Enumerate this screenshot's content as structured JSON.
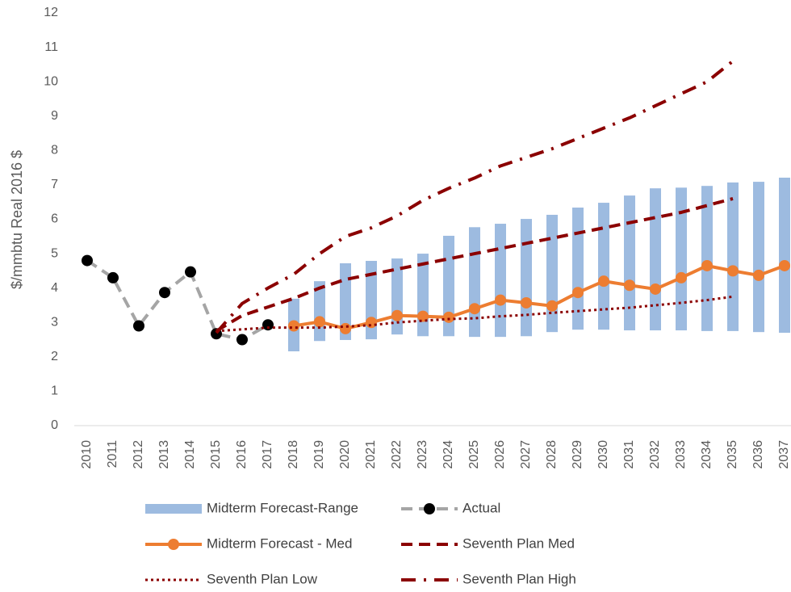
{
  "chart_data": {
    "type": "line",
    "y_label": "$/mmbtu Real 2016 $",
    "categories": [
      "2010",
      "2011",
      "2012",
      "2013",
      "2014",
      "2015",
      "2016",
      "2017",
      "2018",
      "2019",
      "2020",
      "2021",
      "2022",
      "2023",
      "2024",
      "2025",
      "2026",
      "2027",
      "2028",
      "2029",
      "2030",
      "2031",
      "2032",
      "2033",
      "2034",
      "2035",
      "2036",
      "2037"
    ],
    "ylim": [
      0,
      12
    ],
    "yticks": [
      0,
      1,
      2,
      3,
      4,
      5,
      6,
      7,
      8,
      9,
      10,
      11,
      12
    ],
    "grid": false,
    "legend": "bottom",
    "series": [
      {
        "name": "Midterm Forecast-Range",
        "kind": "range",
        "color": "#9dbbe0",
        "low": [
          null,
          null,
          null,
          null,
          null,
          null,
          null,
          null,
          2.16,
          2.46,
          2.49,
          2.51,
          2.65,
          2.6,
          2.6,
          2.58,
          2.58,
          2.6,
          2.72,
          2.79,
          2.79,
          2.77,
          2.77,
          2.77,
          2.75,
          2.75,
          2.72,
          2.7
        ],
        "high": [
          null,
          null,
          null,
          null,
          null,
          null,
          null,
          null,
          3.69,
          4.2,
          4.72,
          4.79,
          4.86,
          5.0,
          5.52,
          5.77,
          5.87,
          6.01,
          6.13,
          6.34,
          6.48,
          6.69,
          6.9,
          6.92,
          6.97,
          7.07,
          7.09,
          7.21
        ]
      },
      {
        "name": "Actual",
        "kind": "line",
        "color": "#a5a5a5",
        "marker_color": "#000000",
        "line_style": "dashed",
        "marker": true,
        "values": [
          4.8,
          4.3,
          2.9,
          3.87,
          4.47,
          2.67,
          2.5,
          2.93,
          null,
          null,
          null,
          null,
          null,
          null,
          null,
          null,
          null,
          null,
          null,
          null,
          null,
          null,
          null,
          null,
          null,
          null,
          null,
          null
        ]
      },
      {
        "name": "Midterm Forecast - Med",
        "kind": "line",
        "color": "#ed7d31",
        "marker_color": "#ed7d31",
        "line_style": "solid",
        "marker": true,
        "values": [
          null,
          null,
          null,
          null,
          null,
          null,
          null,
          null,
          2.9,
          3.02,
          2.82,
          3.0,
          3.2,
          3.18,
          3.15,
          3.4,
          3.65,
          3.57,
          3.48,
          3.87,
          4.2,
          4.08,
          3.97,
          4.3,
          4.65,
          4.5,
          4.37,
          4.65
        ]
      },
      {
        "name": "Seventh Plan Med",
        "kind": "line",
        "color": "#8b0000",
        "line_style": "dashed",
        "marker": false,
        "values": [
          null,
          null,
          null,
          null,
          null,
          2.75,
          3.2,
          3.45,
          3.7,
          4.0,
          4.25,
          4.4,
          4.55,
          4.7,
          4.85,
          5.0,
          5.15,
          5.3,
          5.45,
          5.6,
          5.75,
          5.9,
          6.05,
          6.2,
          6.4,
          6.6,
          null,
          null
        ]
      },
      {
        "name": "Seventh Plan Low",
        "kind": "line",
        "color": "#8b0000",
        "line_style": "dotted",
        "marker": false,
        "values": [
          null,
          null,
          null,
          null,
          null,
          2.75,
          2.8,
          2.85,
          2.85,
          2.85,
          2.88,
          2.92,
          3.0,
          3.05,
          3.1,
          3.12,
          3.18,
          3.22,
          3.28,
          3.33,
          3.38,
          3.43,
          3.5,
          3.57,
          3.65,
          3.75,
          null,
          null
        ]
      },
      {
        "name": "Seventh Plan High",
        "kind": "line",
        "color": "#8b0000",
        "line_style": "dash-dot",
        "marker": false,
        "values": [
          null,
          null,
          null,
          null,
          null,
          2.7,
          3.55,
          4.0,
          4.4,
          5.0,
          5.5,
          5.75,
          6.1,
          6.55,
          6.9,
          7.2,
          7.55,
          7.8,
          8.05,
          8.35,
          8.65,
          8.95,
          9.3,
          9.65,
          10.0,
          10.6,
          null,
          null
        ]
      }
    ]
  }
}
